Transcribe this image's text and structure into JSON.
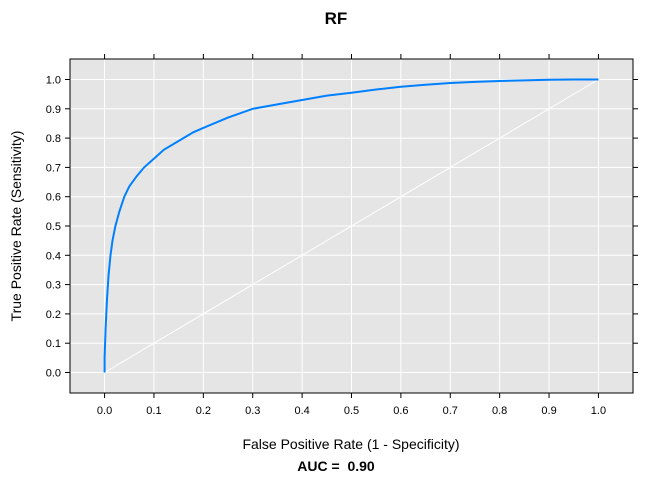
{
  "chart_data": {
    "type": "line",
    "title": "RF",
    "xlabel": "False Positive Rate (1 - Specificity)",
    "ylabel": "True Positive Rate (Sensitivity)",
    "annotation": "AUC =  0.90",
    "xlim": [
      -0.07,
      1.07
    ],
    "ylim": [
      -0.07,
      1.07
    ],
    "x_ticks": [
      "0.0",
      "0.1",
      "0.2",
      "0.3",
      "0.4",
      "0.5",
      "0.6",
      "0.7",
      "0.8",
      "0.9",
      "1.0"
    ],
    "y_ticks": [
      "0.0",
      "0.1",
      "0.2",
      "0.3",
      "0.4",
      "0.5",
      "0.6",
      "0.7",
      "0.8",
      "0.9",
      "1.0"
    ],
    "grid": true,
    "colors": {
      "panel": "#e5e5e5",
      "grid": "#ffffff",
      "roc": "#0080ff",
      "diagonal": "#ffffff"
    },
    "series": [
      {
        "x": [
          0,
          0,
          0.002,
          0.005,
          0.008,
          0.012,
          0.016,
          0.022,
          0.03,
          0.04,
          0.05,
          0.065,
          0.08,
          0.1,
          0.12,
          0.15,
          0.18,
          0.2,
          0.25,
          0.3,
          0.35,
          0.4,
          0.45,
          0.5,
          0.55,
          0.6,
          0.65,
          0.7,
          0.75,
          0.8,
          0.85,
          0.9,
          0.95,
          1.0
        ],
        "y": [
          0,
          0.05,
          0.15,
          0.25,
          0.33,
          0.4,
          0.45,
          0.5,
          0.55,
          0.6,
          0.635,
          0.67,
          0.7,
          0.73,
          0.76,
          0.79,
          0.82,
          0.835,
          0.87,
          0.9,
          0.915,
          0.93,
          0.945,
          0.955,
          0.966,
          0.975,
          0.982,
          0.988,
          0.992,
          0.995,
          0.997,
          0.999,
          1.0,
          1.0
        ]
      },
      {
        "x": [
          0,
          1
        ],
        "y": [
          0,
          1
        ]
      }
    ]
  }
}
